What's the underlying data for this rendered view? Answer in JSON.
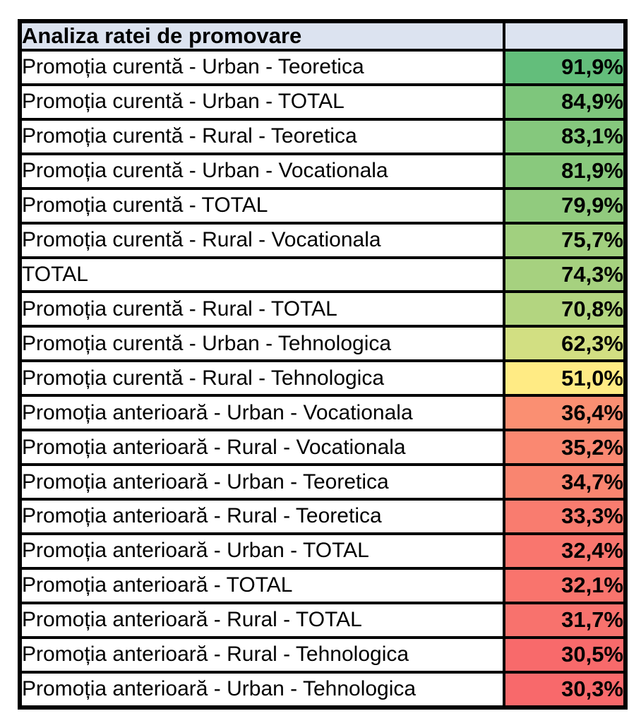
{
  "header": {
    "title": "Analiza ratei de promovare",
    "value_column_label": ""
  },
  "colors": {
    "header_bg": "#DCE3F0",
    "border": "#000000",
    "label_bg": "#FFFFFF",
    "text": "#000000"
  },
  "chart_data": {
    "type": "table",
    "title": "Analiza ratei de promovare",
    "columns": [
      "Analiza ratei de promovare",
      ""
    ],
    "value_format": "percent, comma decimal separator",
    "color_scale": {
      "kind": "3-color scale (red-yellow-green)",
      "min_value": 30.3,
      "mid_value": 51.0,
      "max_value": 91.9,
      "min_color": "#F8696B",
      "mid_color": "#FFEB84",
      "max_color": "#63BE7B"
    },
    "rows": [
      {
        "label": "Promoția curentă - Urban - Teoretica",
        "value": "91,9%",
        "value_num": 91.9,
        "color": "#63BE7B"
      },
      {
        "label": "Promoția curentă - Urban - TOTAL",
        "value": "84,9%",
        "value_num": 84.9,
        "color": "#7EC67C"
      },
      {
        "label": "Promoția curentă - Rural - Teoretica",
        "value": "83,1%",
        "value_num": 83.1,
        "color": "#85C87D"
      },
      {
        "label": "Promoția curentă - Urban - Vocationala",
        "value": "81,9%",
        "value_num": 81.9,
        "color": "#89C97D"
      },
      {
        "label": "Promoția curentă - TOTAL",
        "value": "79,9%",
        "value_num": 79.9,
        "color": "#91CB7E"
      },
      {
        "label": "Promoția curentă - Rural - Vocationala",
        "value": "75,7%",
        "value_num": 75.7,
        "color": "#A1D07F"
      },
      {
        "label": "TOTAL",
        "value": "74,3%",
        "value_num": 74.3,
        "color": "#A6D17F"
      },
      {
        "label": "Promoția curentă - Rural - TOTAL",
        "value": "70,8%",
        "value_num": 70.8,
        "color": "#B3D580"
      },
      {
        "label": "Promoția curentă - Urban - Tehnologica",
        "value": "62,3%",
        "value_num": 62.3,
        "color": "#D2DF82"
      },
      {
        "label": "Promoția curentă - Rural - Tehnologica",
        "value": "51,0%",
        "value_num": 51.0,
        "color": "#FFEB84"
      },
      {
        "label": "Promoția anterioară - Urban - Vocationala",
        "value": "36,4%",
        "value_num": 36.4,
        "color": "#FA8F72"
      },
      {
        "label": "Promoția anterioară - Rural - Vocationala",
        "value": "35,2%",
        "value_num": 35.2,
        "color": "#FA8871"
      },
      {
        "label": "Promoția anterioară - Urban - Teoretica",
        "value": "34,7%",
        "value_num": 34.7,
        "color": "#F98570"
      },
      {
        "label": "Promoția anterioară - Rural - Teoretica",
        "value": "33,3%",
        "value_num": 33.3,
        "color": "#F97C6F"
      },
      {
        "label": "Promoția anterioară - Urban - TOTAL",
        "value": "32,4%",
        "value_num": 32.4,
        "color": "#F9766E"
      },
      {
        "label": "Promoția anterioară - TOTAL",
        "value": "32,1%",
        "value_num": 32.1,
        "color": "#F9746D"
      },
      {
        "label": "Promoția anterioară - Rural - TOTAL",
        "value": "31,7%",
        "value_num": 31.7,
        "color": "#F8726D"
      },
      {
        "label": "Promoția anterioară - Rural - Tehnologica",
        "value": "30,5%",
        "value_num": 30.5,
        "color": "#F86A6B"
      },
      {
        "label": "Promoția anterioară - Urban - Tehnologica",
        "value": "30,3%",
        "value_num": 30.3,
        "color": "#F8696B"
      }
    ]
  }
}
